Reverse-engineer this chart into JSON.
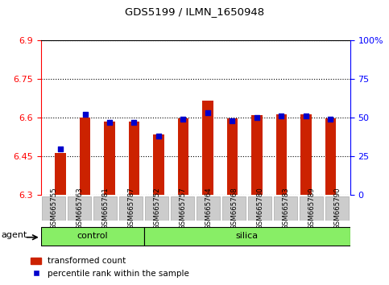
{
  "title": "GDS5199 / ILMN_1650948",
  "samples": [
    "GSM665755",
    "GSM665763",
    "GSM665781",
    "GSM665787",
    "GSM665752",
    "GSM665757",
    "GSM665764",
    "GSM665768",
    "GSM665780",
    "GSM665783",
    "GSM665789",
    "GSM665790"
  ],
  "transformed_count": [
    6.463,
    6.6,
    6.585,
    6.585,
    6.535,
    6.598,
    6.665,
    6.598,
    6.61,
    6.613,
    6.613,
    6.598
  ],
  "percentile_rank": [
    30,
    52,
    47,
    47,
    38,
    49,
    53,
    48,
    50,
    51,
    51,
    49
  ],
  "ymin": 6.3,
  "ymax": 6.9,
  "yticks": [
    6.3,
    6.45,
    6.6,
    6.75,
    6.9
  ],
  "ytick_labels": [
    "6.3",
    "6.45",
    "6.6",
    "6.75",
    "6.9"
  ],
  "y2min": 0,
  "y2max": 100,
  "y2ticks": [
    0,
    25,
    50,
    75,
    100
  ],
  "y2tick_labels": [
    "0",
    "25",
    "50",
    "75",
    "100%"
  ],
  "n_control": 4,
  "bar_color": "#cc2200",
  "dot_color": "#0000cc",
  "green_color": "#88ee66",
  "agent_label": "agent",
  "control_label": "control",
  "silica_label": "silica",
  "legend_red": "transformed count",
  "legend_blue": "percentile rank within the sample"
}
